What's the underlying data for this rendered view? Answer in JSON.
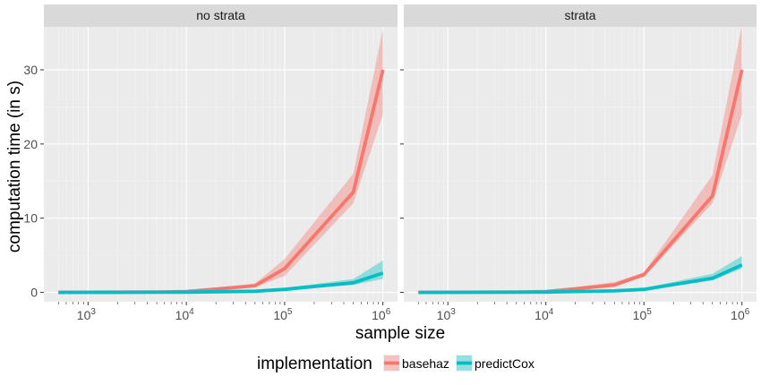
{
  "chart_data": {
    "type": "line",
    "facets": [
      "no strata",
      "strata"
    ],
    "xlabel": "sample size",
    "ylabel": "computation time (in s)",
    "x_scale": "log10",
    "xlim": [
      500,
      1000000
    ],
    "ylim": [
      0,
      35
    ],
    "x_ticks": [
      {
        "value": 1000,
        "base": "10",
        "exp": "3"
      },
      {
        "value": 10000,
        "base": "10",
        "exp": "4"
      },
      {
        "value": 100000,
        "base": "10",
        "exp": "5"
      },
      {
        "value": 1000000,
        "base": "10",
        "exp": "6"
      }
    ],
    "y_ticks": [
      0,
      10,
      20,
      30
    ],
    "x": [
      500,
      1000,
      5000,
      10000,
      50000,
      100000,
      500000,
      1000000
    ],
    "legend": {
      "title": "implementation",
      "position": "bottom",
      "entries": [
        "basehaz",
        "predictCox"
      ]
    },
    "grid": true,
    "panels": [
      {
        "name": "no strata",
        "series": [
          {
            "name": "basehaz",
            "color": "#F8766D",
            "values": [
              0.01,
              0.02,
              0.05,
              0.1,
              0.9,
              3.2,
              13.5,
              30.0
            ],
            "lower": [
              0.0,
              0.0,
              0.02,
              0.06,
              0.7,
              2.2,
              12.0,
              24.0
            ],
            "upper": [
              0.03,
              0.05,
              0.1,
              0.2,
              1.2,
              4.5,
              16.0,
              35.5
            ]
          },
          {
            "name": "predictCox",
            "color": "#00BFC4",
            "values": [
              0.0,
              0.01,
              0.02,
              0.03,
              0.15,
              0.4,
              1.3,
              2.6
            ],
            "lower": [
              0.0,
              0.0,
              0.0,
              0.01,
              0.08,
              0.3,
              1.0,
              1.8
            ],
            "upper": [
              0.02,
              0.03,
              0.05,
              0.06,
              0.25,
              0.6,
              1.8,
              4.3
            ]
          }
        ]
      },
      {
        "name": "strata",
        "series": [
          {
            "name": "basehaz",
            "color": "#F8766D",
            "values": [
              0.01,
              0.02,
              0.05,
              0.1,
              1.0,
              2.4,
              13.0,
              30.0
            ],
            "lower": [
              0.0,
              0.0,
              0.02,
              0.06,
              0.8,
              2.1,
              12.0,
              24.0
            ],
            "upper": [
              0.03,
              0.05,
              0.1,
              0.2,
              1.4,
              2.7,
              15.8,
              36.0
            ]
          },
          {
            "name": "predictCox",
            "color": "#00BFC4",
            "values": [
              0.0,
              0.01,
              0.02,
              0.04,
              0.2,
              0.4,
              1.9,
              3.7
            ],
            "lower": [
              0.0,
              0.0,
              0.0,
              0.02,
              0.1,
              0.3,
              1.6,
              3.2
            ],
            "upper": [
              0.02,
              0.03,
              0.05,
              0.07,
              0.3,
              0.6,
              2.5,
              4.9
            ]
          }
        ]
      }
    ]
  }
}
